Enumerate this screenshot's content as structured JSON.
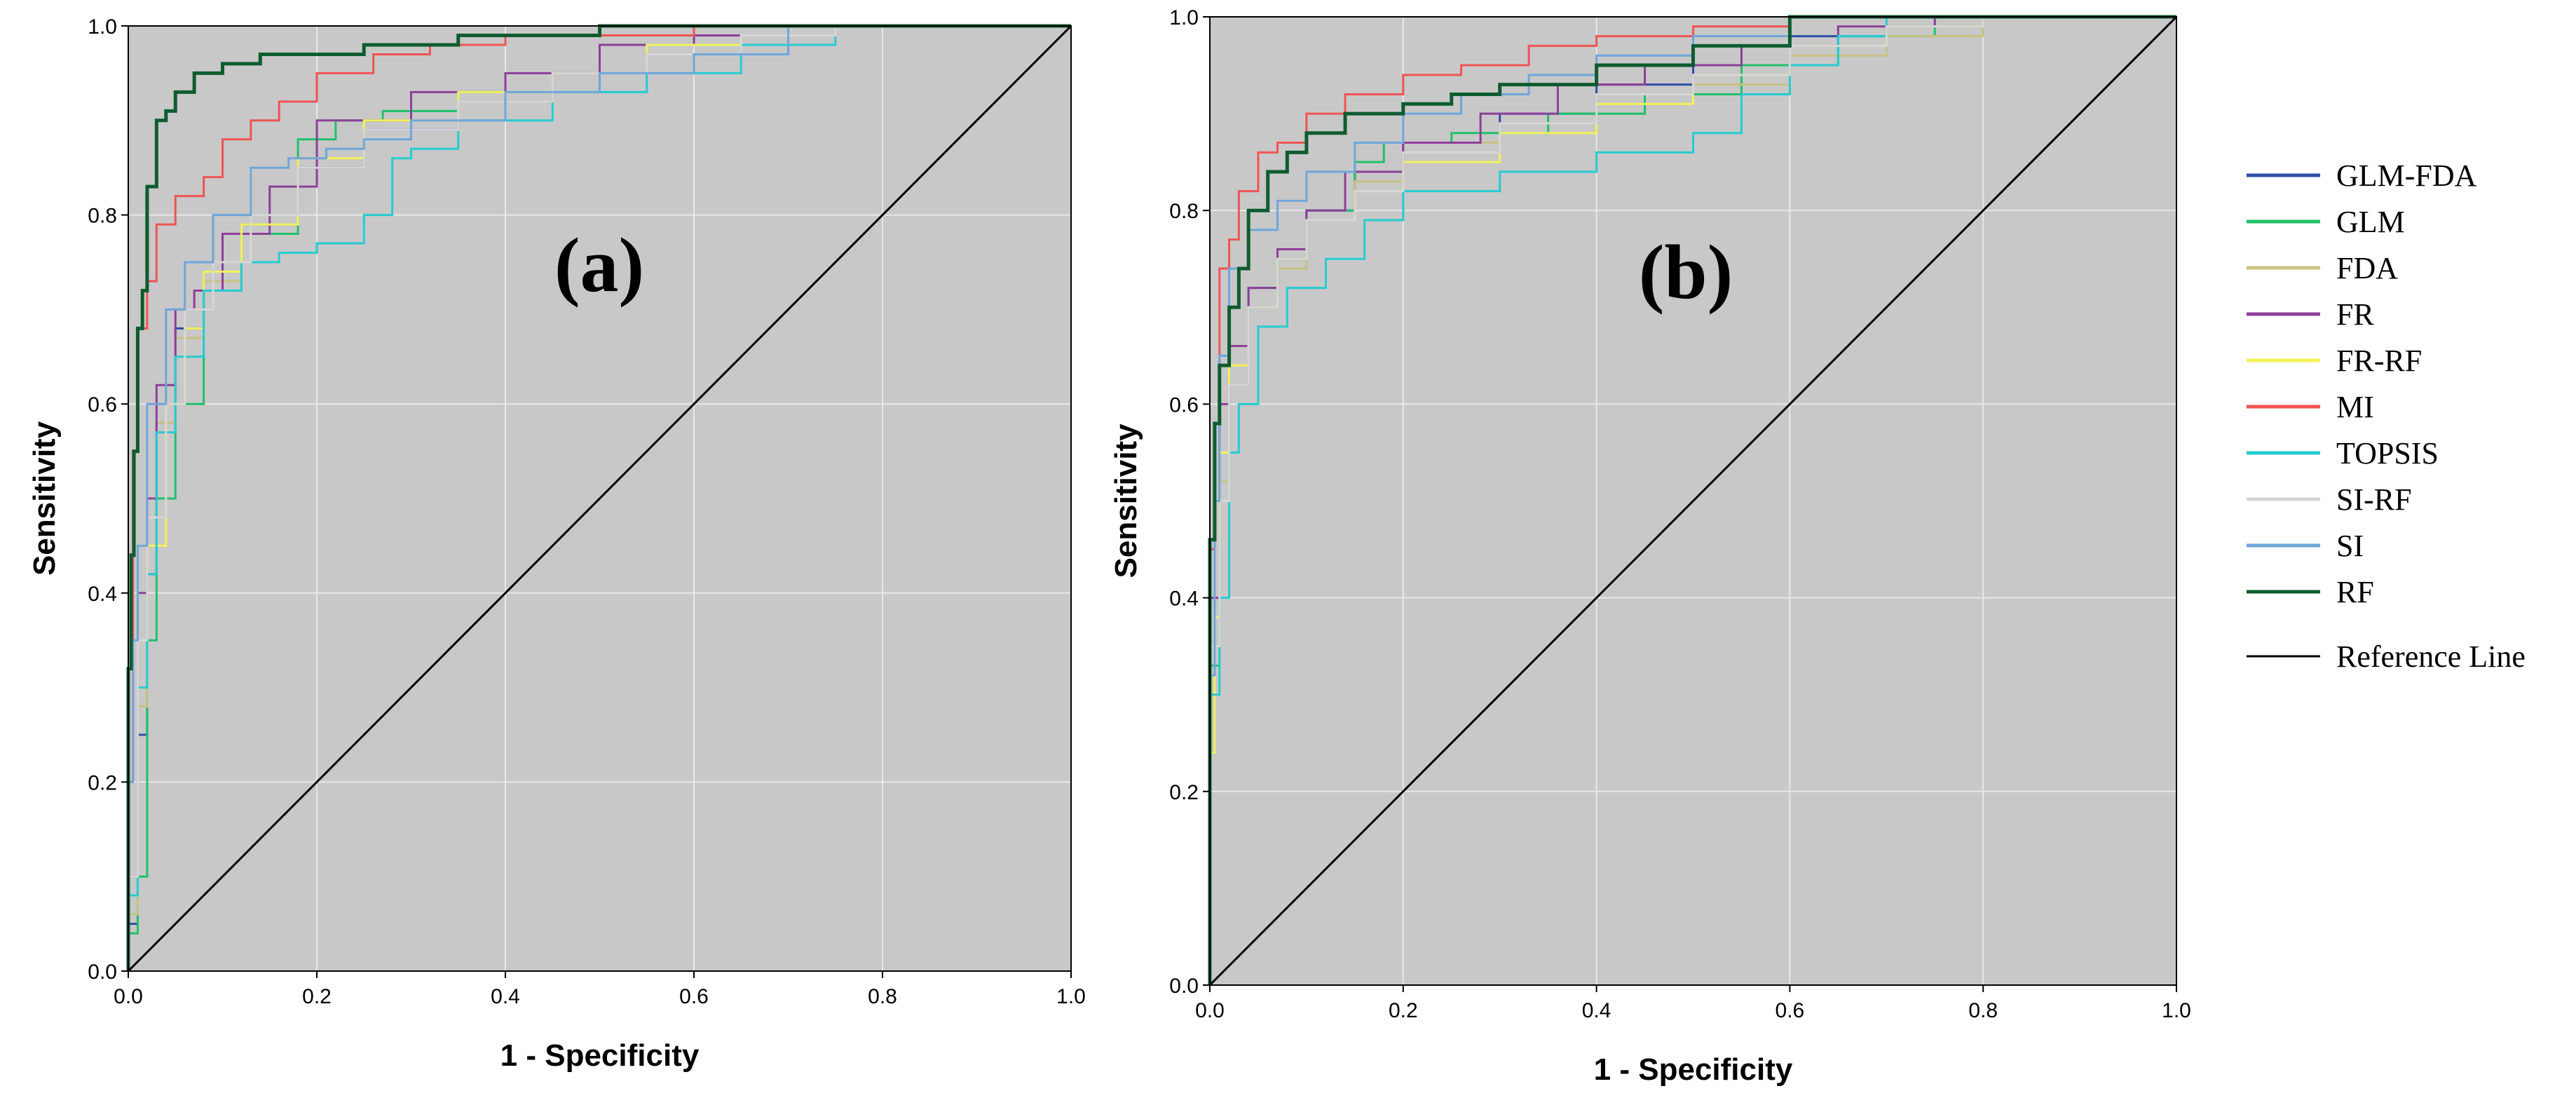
{
  "chart_data": [
    {
      "type": "line",
      "panel_label": "(a)",
      "xlabel": "1 - Specificity",
      "ylabel": "Sensitivity",
      "xlim": [
        0,
        1
      ],
      "ylim": [
        0,
        1
      ],
      "xticks": [
        "0.0",
        "0.2",
        "0.4",
        "0.6",
        "0.8",
        "1.0"
      ],
      "yticks": [
        "0.0",
        "0.2",
        "0.4",
        "0.6",
        "0.8",
        "1.0"
      ],
      "grid": true,
      "series": [
        {
          "name": "GLM-FDA",
          "x": [
            0,
            0.01,
            0.02,
            0.03,
            0.05,
            0.08,
            0.12,
            0.18,
            0.25,
            0.35,
            0.45,
            0.55,
            0.65,
            0.75,
            0.85,
            1
          ],
          "y": [
            0,
            0.05,
            0.25,
            0.42,
            0.58,
            0.68,
            0.74,
            0.79,
            0.85,
            0.89,
            0.92,
            0.95,
            0.97,
            0.99,
            1.0,
            1.0
          ]
        },
        {
          "name": "GLM",
          "x": [
            0,
            0.01,
            0.02,
            0.03,
            0.05,
            0.08,
            0.12,
            0.18,
            0.22,
            0.27,
            0.35,
            0.45,
            0.55,
            0.65,
            0.75,
            0.85,
            1
          ],
          "y": [
            0,
            0.04,
            0.1,
            0.35,
            0.5,
            0.6,
            0.72,
            0.78,
            0.88,
            0.9,
            0.91,
            0.93,
            0.95,
            0.97,
            0.99,
            1.0,
            1.0
          ]
        },
        {
          "name": "FDA",
          "x": [
            0,
            0.01,
            0.02,
            0.03,
            0.05,
            0.08,
            0.12,
            0.18,
            0.25,
            0.35,
            0.45,
            0.55,
            0.65,
            0.75,
            0.85,
            1
          ],
          "y": [
            0,
            0.06,
            0.28,
            0.45,
            0.58,
            0.67,
            0.73,
            0.79,
            0.86,
            0.9,
            0.92,
            0.95,
            0.97,
            0.99,
            1.0,
            1.0
          ]
        },
        {
          "name": "FR",
          "x": [
            0,
            0.01,
            0.02,
            0.03,
            0.05,
            0.07,
            0.1,
            0.15,
            0.2,
            0.3,
            0.4,
            0.5,
            0.6,
            0.7,
            0.8,
            1
          ],
          "y": [
            0,
            0.1,
            0.4,
            0.5,
            0.62,
            0.7,
            0.72,
            0.78,
            0.83,
            0.9,
            0.93,
            0.95,
            0.98,
            0.99,
            1.0,
            1.0
          ]
        },
        {
          "name": "FR-RF",
          "x": [
            0,
            0.01,
            0.02,
            0.04,
            0.06,
            0.08,
            0.12,
            0.18,
            0.25,
            0.35,
            0.45,
            0.55,
            0.65,
            0.75,
            0.85,
            1
          ],
          "y": [
            0,
            0.08,
            0.3,
            0.45,
            0.6,
            0.68,
            0.74,
            0.79,
            0.86,
            0.9,
            0.93,
            0.95,
            0.98,
            0.99,
            1.0,
            1.0
          ]
        },
        {
          "name": "MI",
          "x": [
            0,
            0.005,
            0.01,
            0.02,
            0.03,
            0.05,
            0.08,
            0.1,
            0.13,
            0.16,
            0.2,
            0.26,
            0.32,
            0.4,
            0.5,
            0.6,
            0.7,
            0.8,
            1
          ],
          "y": [
            0,
            0.2,
            0.55,
            0.68,
            0.73,
            0.79,
            0.82,
            0.84,
            0.88,
            0.9,
            0.92,
            0.95,
            0.97,
            0.98,
            0.99,
            0.99,
            1.0,
            1.0,
            1.0
          ]
        },
        {
          "name": "TOPSIS",
          "x": [
            0,
            0.01,
            0.02,
            0.03,
            0.05,
            0.08,
            0.12,
            0.16,
            0.2,
            0.25,
            0.28,
            0.3,
            0.35,
            0.45,
            0.55,
            0.65,
            0.75,
            0.85,
            1
          ],
          "y": [
            0,
            0.08,
            0.3,
            0.42,
            0.57,
            0.65,
            0.72,
            0.75,
            0.76,
            0.77,
            0.8,
            0.86,
            0.87,
            0.9,
            0.93,
            0.95,
            0.98,
            1.0,
            1.0
          ]
        },
        {
          "name": "SI-RF",
          "x": [
            0,
            0.01,
            0.02,
            0.04,
            0.06,
            0.09,
            0.13,
            0.18,
            0.25,
            0.35,
            0.45,
            0.55,
            0.65,
            0.75,
            0.85,
            1
          ],
          "y": [
            0,
            0.1,
            0.35,
            0.48,
            0.6,
            0.7,
            0.75,
            0.8,
            0.85,
            0.89,
            0.92,
            0.95,
            0.97,
            0.99,
            1.0,
            1.0
          ]
        },
        {
          "name": "SI",
          "x": [
            0,
            0.005,
            0.01,
            0.02,
            0.04,
            0.06,
            0.09,
            0.13,
            0.17,
            0.21,
            0.25,
            0.3,
            0.4,
            0.5,
            0.6,
            0.7,
            0.8,
            1
          ],
          "y": [
            0,
            0.2,
            0.35,
            0.45,
            0.6,
            0.7,
            0.75,
            0.8,
            0.85,
            0.86,
            0.87,
            0.88,
            0.9,
            0.93,
            0.95,
            0.97,
            1.0,
            1.0
          ]
        },
        {
          "name": "RF",
          "x": [
            0,
            0.003,
            0.006,
            0.01,
            0.015,
            0.02,
            0.03,
            0.04,
            0.05,
            0.07,
            0.1,
            0.14,
            0.2,
            0.25,
            0.35,
            0.5,
            0.65,
            0.8,
            1
          ],
          "y": [
            0,
            0.32,
            0.44,
            0.55,
            0.68,
            0.72,
            0.83,
            0.9,
            0.91,
            0.93,
            0.95,
            0.96,
            0.97,
            0.97,
            0.98,
            0.99,
            1.0,
            1.0,
            1.0
          ]
        },
        {
          "name": "Reference Line",
          "x": [
            0,
            1
          ],
          "y": [
            0,
            1
          ]
        }
      ]
    },
    {
      "type": "line",
      "panel_label": "(b)",
      "xlabel": "1 - Specificity",
      "ylabel": "Sensitivity",
      "xlim": [
        0,
        1
      ],
      "ylim": [
        0,
        1
      ],
      "xticks": [
        "0.0",
        "0.2",
        "0.4",
        "0.6",
        "0.8",
        "1.0"
      ],
      "yticks": [
        "0.0",
        "0.2",
        "0.4",
        "0.6",
        "0.8",
        "1.0"
      ],
      "grid": true,
      "series": [
        {
          "name": "GLM-FDA",
          "x": [
            0,
            0.01,
            0.02,
            0.04,
            0.07,
            0.1,
            0.15,
            0.2,
            0.3,
            0.4,
            0.5,
            0.6,
            0.7,
            0.8,
            0.9,
            1
          ],
          "y": [
            0,
            0.4,
            0.55,
            0.62,
            0.7,
            0.75,
            0.8,
            0.84,
            0.87,
            0.9,
            0.93,
            0.95,
            0.98,
            0.99,
            1.0,
            1.0
          ]
        },
        {
          "name": "GLM",
          "x": [
            0,
            0.01,
            0.02,
            0.04,
            0.07,
            0.1,
            0.15,
            0.18,
            0.25,
            0.35,
            0.45,
            0.55,
            0.65,
            0.75,
            0.9,
            1
          ],
          "y": [
            0,
            0.33,
            0.5,
            0.62,
            0.72,
            0.76,
            0.8,
            0.85,
            0.87,
            0.88,
            0.9,
            0.92,
            0.95,
            0.98,
            1.0,
            1.0
          ]
        },
        {
          "name": "FDA",
          "x": [
            0,
            0.01,
            0.02,
            0.04,
            0.07,
            0.1,
            0.15,
            0.2,
            0.3,
            0.4,
            0.5,
            0.6,
            0.7,
            0.8,
            0.9,
            1
          ],
          "y": [
            0,
            0.35,
            0.52,
            0.62,
            0.7,
            0.74,
            0.79,
            0.83,
            0.87,
            0.89,
            0.91,
            0.93,
            0.96,
            0.98,
            1.0,
            1.0
          ]
        },
        {
          "name": "FR",
          "x": [
            0,
            0.01,
            0.02,
            0.04,
            0.07,
            0.1,
            0.14,
            0.2,
            0.28,
            0.36,
            0.45,
            0.55,
            0.65,
            0.75,
            0.9,
            1
          ],
          "y": [
            0,
            0.4,
            0.6,
            0.66,
            0.72,
            0.76,
            0.8,
            0.84,
            0.87,
            0.9,
            0.93,
            0.95,
            0.97,
            0.99,
            1.0,
            1.0
          ]
        },
        {
          "name": "FR-RF",
          "x": [
            0,
            0.005,
            0.01,
            0.02,
            0.04,
            0.07,
            0.1,
            0.15,
            0.2,
            0.3,
            0.4,
            0.5,
            0.6,
            0.7,
            0.8,
            1
          ],
          "y": [
            0,
            0.24,
            0.38,
            0.55,
            0.64,
            0.7,
            0.75,
            0.79,
            0.82,
            0.85,
            0.88,
            0.91,
            0.94,
            0.97,
            0.99,
            1.0
          ]
        },
        {
          "name": "MI",
          "x": [
            0,
            0.005,
            0.01,
            0.02,
            0.03,
            0.05,
            0.07,
            0.1,
            0.14,
            0.2,
            0.26,
            0.33,
            0.4,
            0.5,
            0.6,
            0.7,
            1
          ],
          "y": [
            0,
            0.45,
            0.58,
            0.74,
            0.77,
            0.82,
            0.86,
            0.87,
            0.9,
            0.92,
            0.94,
            0.95,
            0.97,
            0.98,
            0.99,
            1.0,
            1.0
          ]
        },
        {
          "name": "TOPSIS",
          "x": [
            0,
            0.01,
            0.02,
            0.03,
            0.05,
            0.08,
            0.12,
            0.16,
            0.2,
            0.3,
            0.4,
            0.5,
            0.55,
            0.6,
            0.65,
            0.7,
            0.8,
            1
          ],
          "y": [
            0,
            0.3,
            0.4,
            0.55,
            0.6,
            0.68,
            0.72,
            0.75,
            0.79,
            0.82,
            0.84,
            0.86,
            0.88,
            0.92,
            0.95,
            0.98,
            1.0,
            1.0
          ]
        },
        {
          "name": "SI-RF",
          "x": [
            0,
            0.01,
            0.02,
            0.04,
            0.07,
            0.1,
            0.15,
            0.2,
            0.3,
            0.4,
            0.5,
            0.6,
            0.7,
            0.8,
            0.9,
            1
          ],
          "y": [
            0,
            0.35,
            0.5,
            0.62,
            0.7,
            0.75,
            0.79,
            0.82,
            0.86,
            0.89,
            0.92,
            0.94,
            0.97,
            0.99,
            1.0,
            1.0
          ]
        },
        {
          "name": "SI",
          "x": [
            0,
            0.005,
            0.01,
            0.02,
            0.04,
            0.07,
            0.1,
            0.15,
            0.2,
            0.26,
            0.33,
            0.4,
            0.5,
            0.6,
            0.7,
            1
          ],
          "y": [
            0,
            0.32,
            0.5,
            0.65,
            0.74,
            0.78,
            0.81,
            0.84,
            0.87,
            0.9,
            0.92,
            0.94,
            0.96,
            0.98,
            1.0,
            1.0
          ]
        },
        {
          "name": "RF",
          "x": [
            0,
            0.005,
            0.01,
            0.02,
            0.03,
            0.04,
            0.06,
            0.08,
            0.1,
            0.14,
            0.2,
            0.25,
            0.3,
            0.4,
            0.5,
            0.6,
            0.62,
            1
          ],
          "y": [
            0,
            0.46,
            0.58,
            0.64,
            0.7,
            0.74,
            0.8,
            0.84,
            0.86,
            0.88,
            0.9,
            0.91,
            0.92,
            0.93,
            0.95,
            0.97,
            1.0,
            1.0
          ]
        },
        {
          "name": "Reference Line",
          "x": [
            0,
            1
          ],
          "y": [
            0,
            1
          ]
        }
      ]
    }
  ],
  "legend": {
    "placement": "right",
    "items": [
      {
        "label": "GLM-FDA",
        "color": "#2E4FA8"
      },
      {
        "label": "GLM",
        "color": "#1FC16B"
      },
      {
        "label": "FDA",
        "color": "#C8C282"
      },
      {
        "label": "FR",
        "color": "#8E3F9A"
      },
      {
        "label": "FR-RF",
        "color": "#F2F25A"
      },
      {
        "label": "MI",
        "color": "#F05454"
      },
      {
        "label": "TOPSIS",
        "color": "#26CCD1"
      },
      {
        "label": "SI-RF",
        "color": "#D6D6D6"
      },
      {
        "label": "SI",
        "color": "#6FA6DB"
      },
      {
        "label": "RF",
        "color": "#0E5C2F"
      },
      {
        "label": "Reference Line",
        "color": "#000000"
      }
    ]
  },
  "colors": {
    "plot_background": "#C8C8C8",
    "grid": "#E8E8E8",
    "reference": "#000000"
  }
}
